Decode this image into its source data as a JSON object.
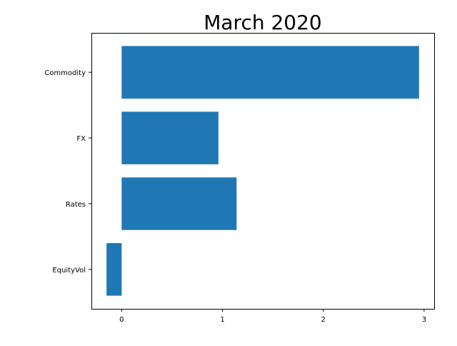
{
  "title": "March 2020",
  "chart_data": {
    "type": "bar",
    "orientation": "horizontal",
    "title": "March 2020",
    "xlabel": "",
    "ylabel": "",
    "categories": [
      "EquityVol",
      "Rates",
      "FX",
      "Commodity"
    ],
    "values": [
      -0.15,
      1.14,
      0.96,
      2.95
    ],
    "xlim": [
      -0.3,
      3.1
    ],
    "xticks": [
      0,
      1,
      2,
      3
    ],
    "grid": false,
    "legend": "none",
    "bar_color": "#1f77b4"
  }
}
